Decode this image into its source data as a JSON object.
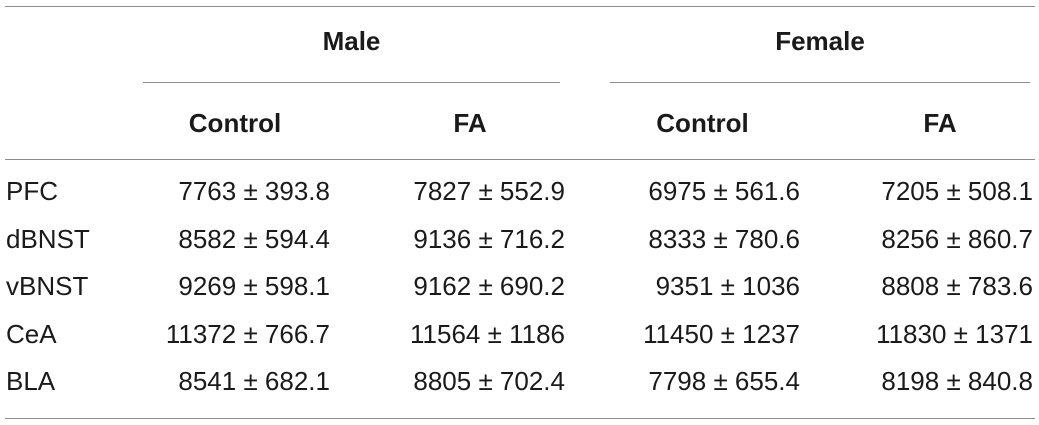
{
  "table": {
    "groups": [
      "Male",
      "Female"
    ],
    "subheaders": [
      "Control",
      "FA",
      "Control",
      "FA"
    ],
    "rows": [
      {
        "label": "PFC",
        "values": [
          "7763 ± 393.8",
          "7827 ± 552.9",
          "6975 ± 561.6",
          "7205 ± 508.1"
        ]
      },
      {
        "label": "dBNST",
        "values": [
          "8582 ± 594.4",
          "9136 ± 716.2",
          "8333 ± 780.6",
          "8256 ± 860.7"
        ]
      },
      {
        "label": "vBNST",
        "values": [
          "9269 ± 598.1",
          "9162 ± 690.2",
          "9351 ± 1036",
          "8808 ± 783.6"
        ]
      },
      {
        "label": "CeA",
        "values": [
          "11372 ± 766.7",
          "11564 ± 1186",
          "11450 ± 1237",
          "11830 ± 1371"
        ]
      },
      {
        "label": "BLA",
        "values": [
          "8541 ± 682.1",
          "8805 ± 702.4",
          "7798 ± 655.4",
          "8198 ± 840.8"
        ]
      }
    ]
  }
}
